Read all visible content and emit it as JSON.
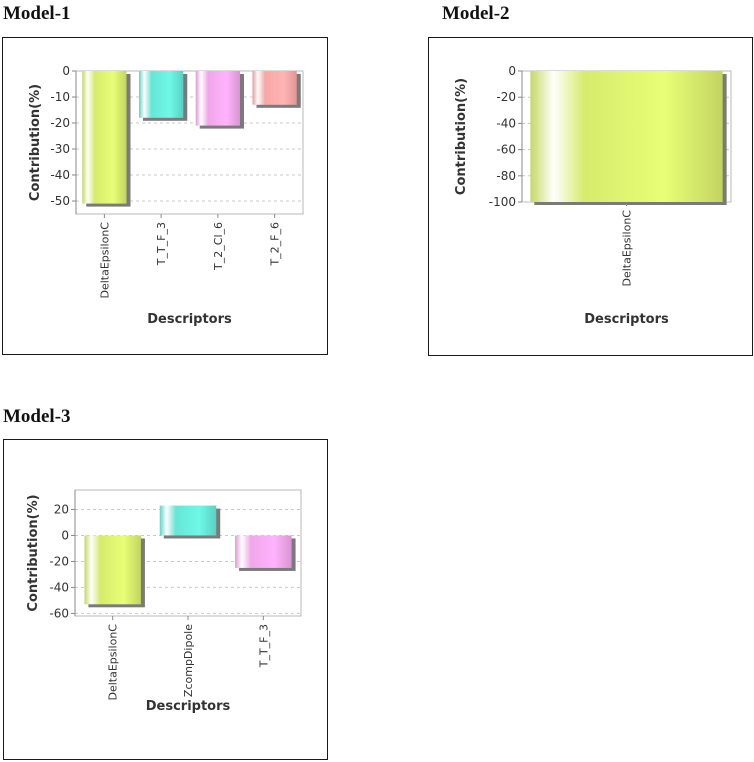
{
  "models": [
    {
      "title": "Model-1",
      "chart_data": {
        "type": "bar",
        "categories": [
          "DeltaEpsilonC",
          "T_T_F_3",
          "T_2_Cl_6",
          "T_2_F_6"
        ],
        "values": [
          -51,
          -18,
          -21,
          -13
        ],
        "colors": [
          "#d7eb6c",
          "#66e6d6",
          "#f0a6ea",
          "#f8a8a6"
        ],
        "ylim": [
          -55,
          0
        ],
        "yticks": [
          0,
          -10,
          -20,
          -30,
          -40,
          -50
        ],
        "xlabel": "Descriptors",
        "ylabel": "Contribution(%)",
        "grid": true
      }
    },
    {
      "title": "Model-2",
      "chart_data": {
        "type": "bar",
        "categories": [
          "DeltaEpsilonC"
        ],
        "values": [
          -100
        ],
        "colors": [
          "#d7eb6c"
        ],
        "ylim": [
          -100,
          0
        ],
        "yticks": [
          0,
          -20,
          -40,
          -60,
          -80,
          -100
        ],
        "xlabel": "Descriptors",
        "ylabel": "Contribution(%)",
        "grid": true
      }
    },
    {
      "title": "Model-3",
      "chart_data": {
        "type": "bar",
        "categories": [
          "DeltaEpsilonC",
          "ZcompDipole",
          "T_T_F_3"
        ],
        "values": [
          -53,
          23,
          -25
        ],
        "colors": [
          "#d7eb6c",
          "#66e6d6",
          "#f0a6ea"
        ],
        "ylim": [
          -62,
          35
        ],
        "yticks": [
          20,
          0,
          -20,
          -40,
          -60
        ],
        "xlabel": "Descriptors",
        "ylabel": "Contribution(%)",
        "grid": true
      }
    }
  ]
}
